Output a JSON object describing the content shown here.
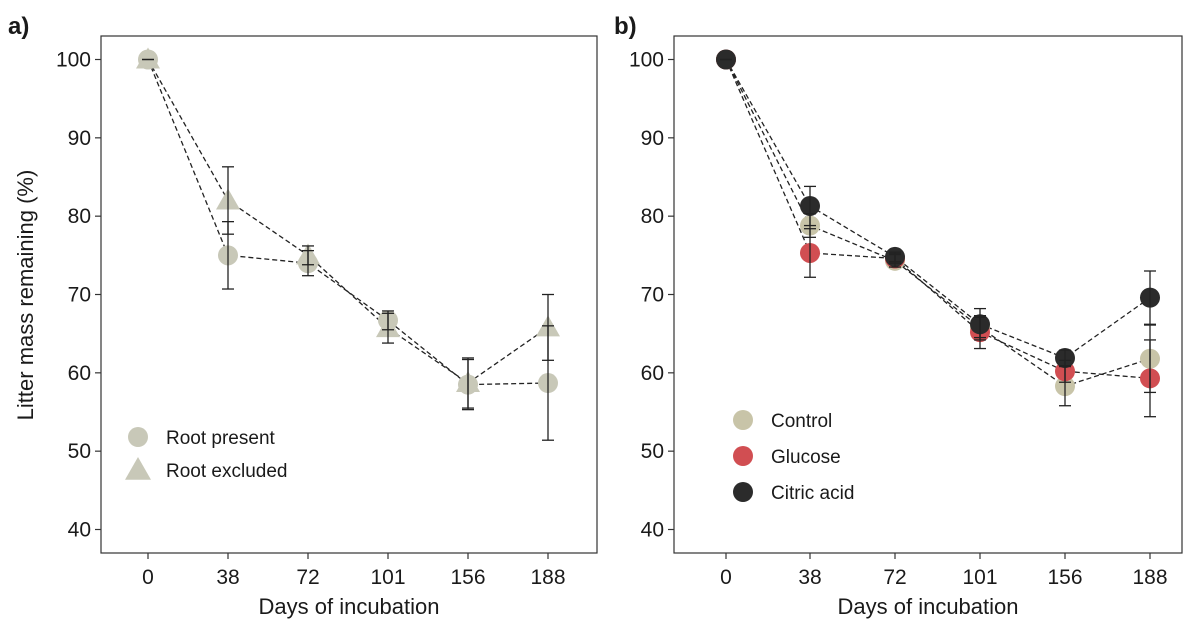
{
  "ylabel": "Litter mass remaining  (%)",
  "chart_data": [
    {
      "panel": "a)",
      "type": "scatter",
      "connected": "dashed",
      "xlabel": "Days of incubation",
      "categories": [
        "0",
        "38",
        "72",
        "101",
        "156",
        "188"
      ],
      "ylim": [
        37,
        103
      ],
      "yticks": [
        40,
        50,
        60,
        70,
        80,
        90,
        100
      ],
      "grid": false,
      "legend": "bottom-left",
      "series": [
        {
          "name": "Root present",
          "marker": "circle",
          "color": "#c8c8b8",
          "values": [
            100,
            75,
            74,
            66.7,
            58.5,
            58.7
          ],
          "error": [
            0,
            4.3,
            1.6,
            1.2,
            3.2,
            7.3
          ]
        },
        {
          "name": "Root excluded",
          "marker": "triangle",
          "color": "#c8c8b8",
          "values": [
            100,
            82,
            75,
            65.7,
            58.7,
            65.8
          ],
          "error": [
            0,
            4.3,
            1.2,
            1.9,
            3.2,
            4.2
          ]
        }
      ]
    },
    {
      "panel": "b)",
      "type": "scatter",
      "connected": "dashed",
      "xlabel": "Days of incubation",
      "categories": [
        "0",
        "38",
        "72",
        "101",
        "156",
        "188"
      ],
      "ylim": [
        37,
        103
      ],
      "yticks": [
        40,
        50,
        60,
        70,
        80,
        90,
        100
      ],
      "grid": false,
      "legend": "bottom-left",
      "series": [
        {
          "name": "Control",
          "marker": "circle",
          "color": "#c8c4a8",
          "values": [
            100,
            78.8,
            74.3,
            65.8,
            58.3,
            61.8
          ],
          "error": [
            0,
            1.5,
            0.8,
            1.3,
            2.5,
            4.3
          ]
        },
        {
          "name": "Glucose",
          "marker": "circle",
          "color": "#d14e52",
          "values": [
            100,
            75.3,
            74.6,
            65.2,
            60.2,
            59.3
          ],
          "error": [
            0,
            3.1,
            0.6,
            2.1,
            1.4,
            4.9
          ]
        },
        {
          "name": "Citric acid",
          "marker": "circle",
          "color": "#2b2b2b",
          "values": [
            100,
            81.3,
            74.8,
            66.2,
            61.9,
            69.6
          ],
          "error": [
            0,
            2.5,
            0.6,
            2.0,
            1.0,
            3.4
          ]
        }
      ]
    }
  ]
}
